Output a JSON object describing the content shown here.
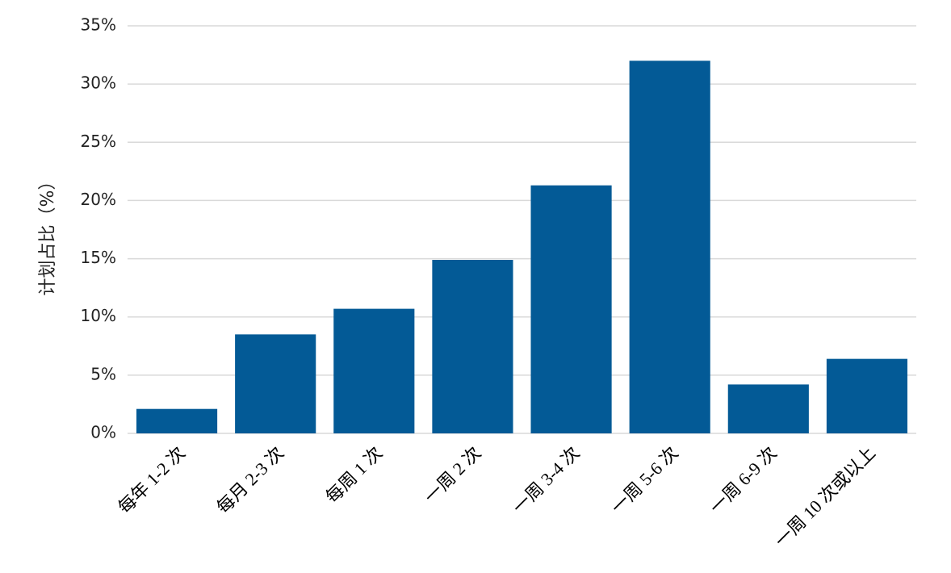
{
  "chart_data": {
    "type": "bar",
    "y_label": "计划占比（%）",
    "categories": [
      "每年 1-2 次",
      "每月 2-3 次",
      "每周 1 次",
      "一周 2 次",
      "一周 3-4 次",
      "一周 5-6 次",
      "一周 6-9 次",
      "一周 10 次或以上"
    ],
    "values": [
      2.1,
      8.5,
      10.7,
      14.9,
      21.3,
      32.0,
      4.2,
      6.4
    ],
    "color": "#035a96",
    "ylim": [
      0,
      35
    ],
    "yticks": [
      {
        "value": 0,
        "label": "0%"
      },
      {
        "value": 5,
        "label": "5%"
      },
      {
        "value": 10,
        "label": "10%"
      },
      {
        "value": 15,
        "label": "15%"
      },
      {
        "value": 20,
        "label": "20%"
      },
      {
        "value": 25,
        "label": "25%"
      },
      {
        "value": 30,
        "label": "30%"
      },
      {
        "value": 35,
        "label": "35%"
      }
    ],
    "grid": true
  }
}
